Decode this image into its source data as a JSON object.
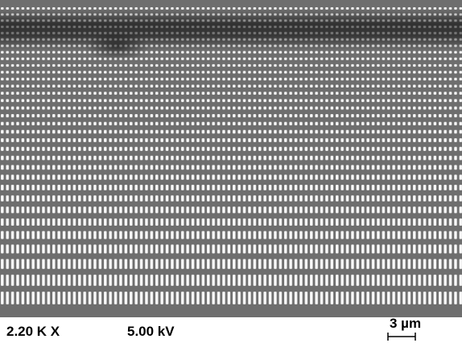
{
  "image": {
    "magnification": "2.20 K X",
    "voltage": "5.00 kV",
    "scale_bar": "3 µm"
  }
}
